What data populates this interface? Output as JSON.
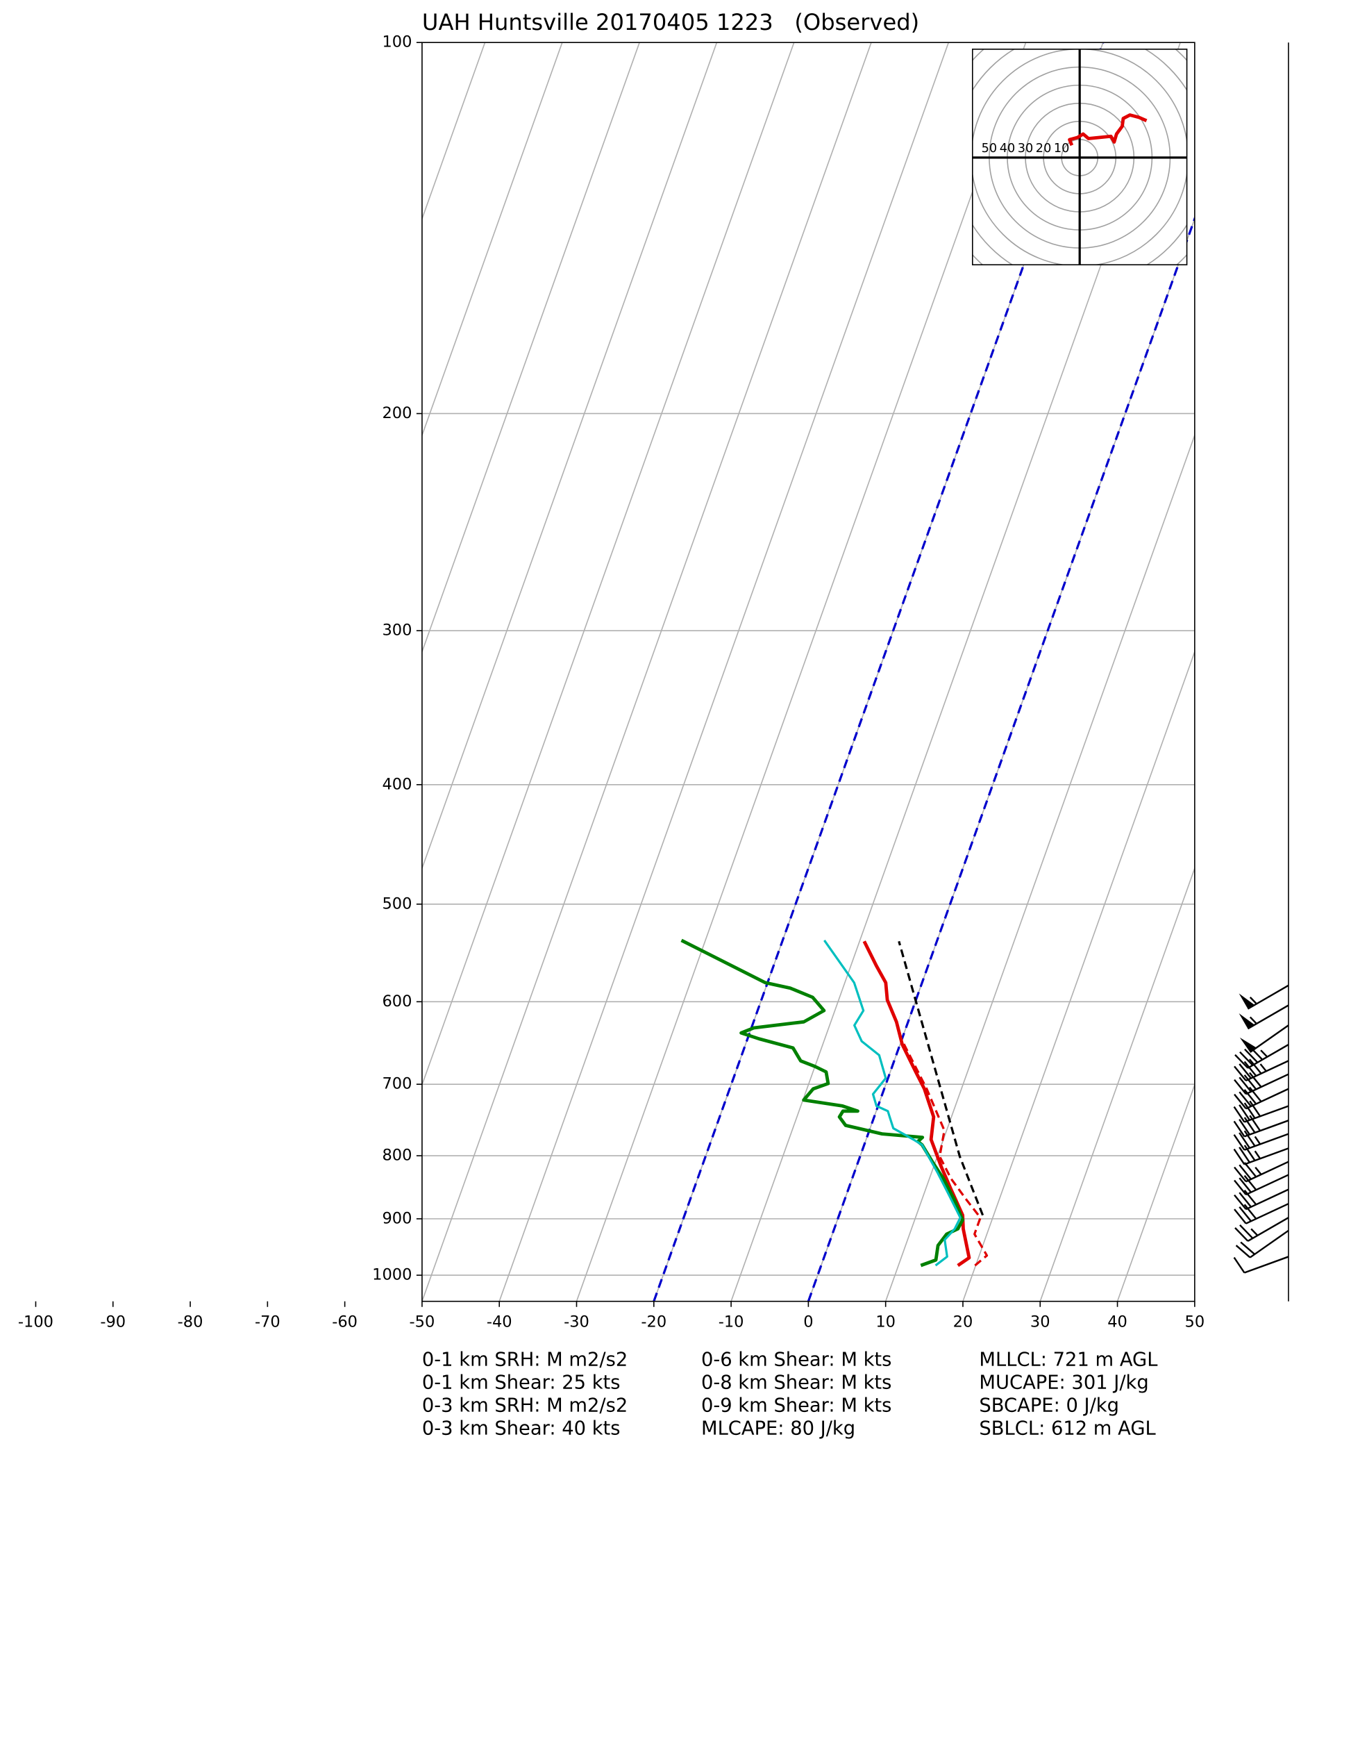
{
  "chart_data": {
    "type": "skewt",
    "title": "UAH Huntsville 20170405 1223   (Observed)",
    "xlim": [
      -50,
      50
    ],
    "ylim": [
      1050,
      100
    ],
    "log_y": true,
    "grid": true,
    "xticks": [
      -100,
      -90,
      -80,
      -70,
      -60,
      -50,
      -40,
      -30,
      -20,
      -10,
      0,
      10,
      20,
      30,
      40,
      50
    ],
    "yticks": [
      100,
      200,
      300,
      400,
      500,
      600,
      700,
      800,
      900,
      1000
    ],
    "dashed_isotherms": {
      "values": [
        -20,
        0
      ],
      "color": "#0000cc"
    },
    "series": [
      {
        "color": "#e00000",
        "dashed": false,
        "width": 3,
        "pressure": [
          982,
          968,
          917,
          894,
          852,
          817,
          776,
          744,
          706,
          684,
          650,
          623,
          598,
          579,
          561,
          536
        ],
        "values": [
          17.7,
          18.8,
          16.7,
          16.0,
          13.3,
          11.0,
          8.4,
          7.7,
          5.2,
          3.3,
          0.3,
          -1.5,
          -3.7,
          -4.7,
          -6.7,
          -9.4
        ]
      },
      {
        "color": "#e00000",
        "dashed": true,
        "width": 2,
        "pressure": [
          982,
          964,
          926,
          898,
          870,
          835,
          801,
          763,
          706,
          643
        ],
        "values": [
          19.9,
          21.0,
          18.4,
          18.4,
          15.9,
          12.8,
          10.3,
          9.7,
          5.5,
          -0.1
        ]
      },
      {
        "color": "#008000",
        "dashed": false,
        "width": 3,
        "pressure": [
          982,
          972,
          946,
          926,
          917,
          902,
          870,
          835,
          809,
          784,
          779,
          773,
          768,
          756,
          744,
          736,
          736,
          729,
          721,
          706,
          699,
          684,
          677,
          670,
          654,
          643,
          636,
          630,
          623,
          610,
          595,
          585,
          579,
          535
        ],
        "values": [
          12.9,
          14.6,
          14.2,
          14.8,
          16.0,
          16.2,
          14.3,
          11.8,
          9.6,
          7.5,
          6.8,
          7.2,
          1.8,
          -3.3,
          -4.5,
          -4.3,
          -2.4,
          -4.6,
          -9.9,
          -9.2,
          -7.5,
          -8.3,
          -10.0,
          -12.1,
          -13.7,
          -18.5,
          -21.1,
          -19.7,
          -13.5,
          -11.4,
          -13.5,
          -16.8,
          -20.3,
          -33.1
        ]
      },
      {
        "color": "#00bfbf",
        "dashed": false,
        "width": 2,
        "pressure": [
          982,
          966,
          936,
          917,
          898,
          861,
          826,
          784,
          776,
          760,
          744,
          736,
          729,
          713,
          692,
          663,
          646,
          627,
          610,
          579,
          535
        ],
        "values": [
          14.8,
          15.9,
          14.8,
          15.6,
          15.8,
          13.3,
          10.8,
          7.5,
          6.1,
          3.0,
          2.0,
          1.5,
          -0.2,
          -1.2,
          -0.3,
          -2.2,
          -5.1,
          -6.8,
          -6.3,
          -8.8,
          -14.6
        ]
      },
      {
        "color": "#000000",
        "dashed": true,
        "width": 2,
        "pressure": [
          894,
          801,
          684,
          536
        ],
        "values": [
          18.6,
          12.9,
          5.9,
          -4.9
        ]
      }
    ],
    "hodograph": {
      "rings": [
        10,
        20,
        30,
        40,
        50,
        60,
        70,
        80
      ],
      "ring_labels": [
        50,
        40,
        30,
        20,
        10
      ],
      "color": "#e00000",
      "u": [
        -4.3,
        -5.6,
        -1.2,
        1.9,
        4.9,
        11.1,
        17.3,
        19.1,
        20.4,
        23.5,
        24.1,
        27.8,
        32.7,
        37.0
      ],
      "v": [
        6.8,
        9.9,
        11.1,
        13.0,
        10.5,
        11.1,
        11.7,
        8.6,
        13.0,
        17.3,
        21.6,
        23.5,
        22.2,
        20.4
      ]
    },
    "barbs": {
      "pressure": [
        582,
        604,
        627,
        650,
        670,
        687,
        706,
        729,
        749,
        768,
        789,
        809,
        829,
        852,
        875,
        898,
        920,
        966
      ],
      "speed": [
        55,
        55,
        50,
        45,
        45,
        40,
        40,
        40,
        40,
        35,
        35,
        35,
        30,
        30,
        30,
        25,
        20,
        10
      ],
      "direction": [
        240,
        240,
        235,
        240,
        245,
        245,
        245,
        250,
        250,
        250,
        250,
        245,
        245,
        245,
        245,
        240,
        235,
        250
      ]
    },
    "annotations": [
      [
        "0-1 km SRH: M m2/s2",
        "0-1 km Shear: 25 kts",
        "0-3 km SRH: M m2/s2",
        "0-3 km Shear: 40 kts"
      ],
      [
        "0-6 km Shear: M kts",
        "0-8 km Shear: M kts",
        "0-9 km Shear: M kts",
        "MLCAPE: 80 J/kg"
      ],
      [
        "MLLCL: 721 m AGL",
        "MUCAPE: 301 J/kg",
        "SBCAPE: 0 J/kg",
        "SBLCL: 612 m AGL"
      ]
    ]
  }
}
